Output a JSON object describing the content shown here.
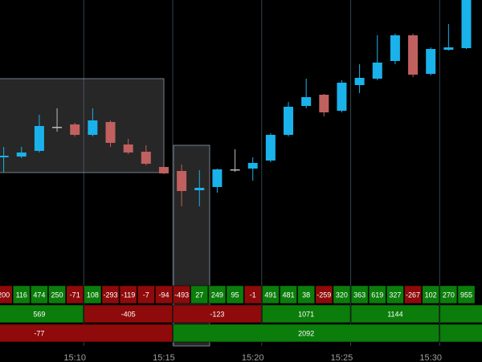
{
  "chart_data": {
    "type": "candlestick",
    "candles": [
      {
        "open": 154,
        "high": 167,
        "low": 135,
        "close": 156
      },
      {
        "open": 155,
        "high": 167,
        "low": 153,
        "close": 160
      },
      {
        "open": 162,
        "high": 207,
        "low": 160,
        "close": 193
      },
      {
        "open": 192,
        "high": 215,
        "low": 186,
        "close": 192
      },
      {
        "open": 195,
        "high": 197,
        "low": 180,
        "close": 182
      },
      {
        "open": 182,
        "high": 215,
        "low": 180,
        "close": 200
      },
      {
        "open": 198,
        "high": 200,
        "low": 167,
        "close": 172
      },
      {
        "open": 170,
        "high": 177,
        "low": 158,
        "close": 160
      },
      {
        "open": 161,
        "high": 169,
        "low": 144,
        "close": 146
      },
      {
        "open": 142,
        "high": 143,
        "low": 133,
        "close": 134
      },
      {
        "open": 137,
        "high": 145,
        "low": 93,
        "close": 112
      },
      {
        "open": 113,
        "high": 138,
        "low": 93,
        "close": 116
      },
      {
        "open": 117,
        "high": 140,
        "low": 110,
        "close": 139
      },
      {
        "open": 139,
        "high": 164,
        "low": 136,
        "close": 139
      },
      {
        "open": 140,
        "high": 154,
        "low": 125,
        "close": 147
      },
      {
        "open": 150,
        "high": 184,
        "low": 148,
        "close": 182
      },
      {
        "open": 182,
        "high": 223,
        "low": 180,
        "close": 217
      },
      {
        "open": 218,
        "high": 252,
        "low": 215,
        "close": 229
      },
      {
        "open": 232,
        "high": 233,
        "low": 205,
        "close": 210
      },
      {
        "open": 212,
        "high": 250,
        "low": 210,
        "close": 247
      },
      {
        "open": 244,
        "high": 270,
        "low": 234,
        "close": 253
      },
      {
        "open": 252,
        "high": 306,
        "low": 250,
        "close": 272
      },
      {
        "open": 274,
        "high": 308,
        "low": 270,
        "close": 306
      },
      {
        "open": 306,
        "high": 308,
        "low": 254,
        "close": 257
      },
      {
        "open": 258,
        "high": 291,
        "low": 256,
        "close": 289
      },
      {
        "open": 288,
        "high": 320,
        "low": 287,
        "close": 291
      },
      {
        "open": 290,
        "high": 350,
        "low": 289,
        "close": 350
      }
    ],
    "up_color": "#1ab2ea",
    "down_color": "#c0605f",
    "doji_color": "#bbbbbb",
    "ylim": [
      0,
      350
    ],
    "x_labels": [
      "15:10",
      "15:15",
      "15:20",
      "15:25",
      "15:30"
    ],
    "delta_rows": [
      {
        "values": [
          200,
          116,
          474,
          250,
          -71,
          108,
          -293,
          -119,
          -7,
          -94,
          -493,
          27,
          249,
          95,
          -1,
          491,
          481,
          38,
          -259,
          320,
          363,
          619,
          327,
          -267,
          102,
          270,
          955
        ],
        "colors": [
          "#8f0a0a",
          "#0b7d0b",
          "#0b7d0b",
          "#0b7d0b",
          "#8f0a0a",
          "#0b7d0b",
          "#8f0a0a",
          "#8f0a0a",
          "#8f0a0a",
          "#8f0a0a",
          "#8f0a0a",
          "#0b7d0b",
          "#0b7d0b",
          "#0b7d0b",
          "#8f0a0a",
          "#0b7d0b",
          "#0b7d0b",
          "#0b7d0b",
          "#8f0a0a",
          "#0b7d0b",
          "#0b7d0b",
          "#0b7d0b",
          "#0b7d0b",
          "#8f0a0a",
          "#0b7d0b",
          "#0b7d0b",
          "#0b7d0b"
        ]
      },
      {
        "values": [
          569,
          -405,
          -123,
          1071,
          1144,
          null
        ],
        "colors": [
          "#0b7d0b",
          "#8f0a0a",
          "#8f0a0a",
          "#0b7d0b",
          "#0b7d0b",
          "#0b7d0b"
        ]
      },
      {
        "values": [
          -77,
          2092,
          null
        ],
        "colors": [
          "#8f0a0a",
          "#0b7d0b",
          "#0b7d0b"
        ]
      }
    ]
  }
}
